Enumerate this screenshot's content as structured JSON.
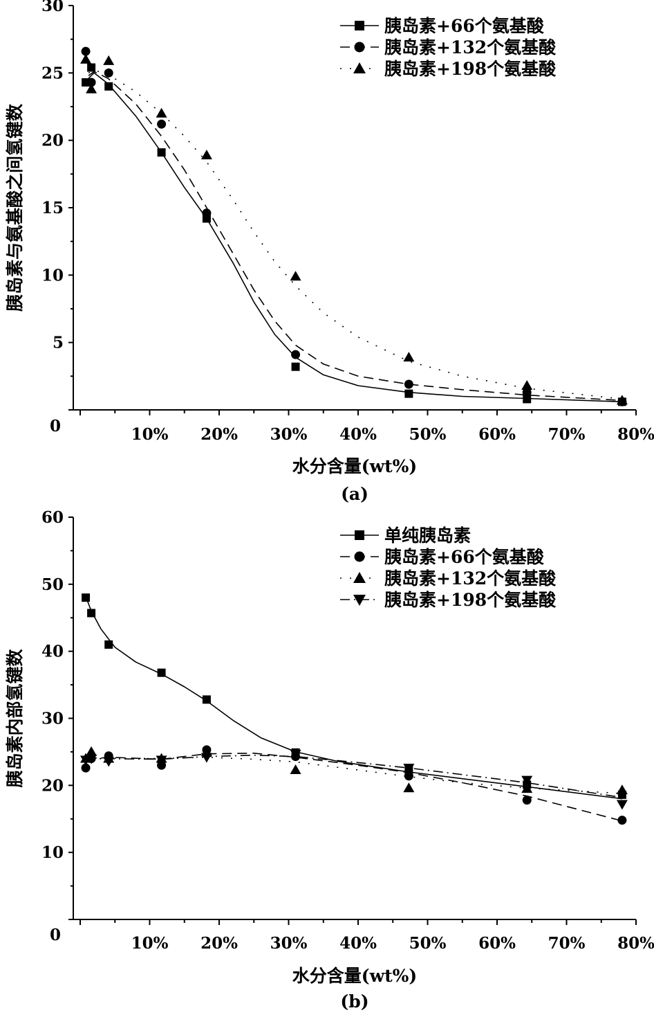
{
  "chart_data": [
    {
      "type": "scatter",
      "panel_label": "(a)",
      "xlabel": "水分含量(wt%)",
      "ylabel": "胰岛素与氨基酸之间氢键数",
      "x_ticks": [
        "0",
        "10%",
        "20%",
        "30%",
        "40%",
        "50%",
        "60%",
        "70%",
        "80%"
      ],
      "y_ticks": [
        "5",
        "10",
        "15",
        "20",
        "25",
        "30"
      ],
      "xlim": [
        0,
        80
      ],
      "ylim": [
        0,
        30
      ],
      "legend_position": "top-right",
      "series": [
        {
          "name": "胰岛素+66个氨基酸",
          "marker": "square",
          "line": "solid",
          "points": [
            [
              0.8,
              24.3
            ],
            [
              1.6,
              25.4
            ],
            [
              4.1,
              24.0
            ],
            [
              11.7,
              19.1
            ],
            [
              18.2,
              14.2
            ],
            [
              31.0,
              3.2
            ],
            [
              47.3,
              1.2
            ],
            [
              64.3,
              0.8
            ],
            [
              78.0,
              0.6
            ]
          ],
          "fit": [
            [
              1.2,
              24.6
            ],
            [
              2.0,
              25.0
            ],
            [
              4.0,
              24.2
            ],
            [
              8.0,
              21.8
            ],
            [
              11.7,
              19.1
            ],
            [
              15.0,
              16.5
            ],
            [
              18.2,
              14.2
            ],
            [
              22.0,
              10.9
            ],
            [
              25.0,
              8.0
            ],
            [
              28.0,
              5.6
            ],
            [
              31.0,
              3.9
            ],
            [
              35.0,
              2.6
            ],
            [
              40.0,
              1.8
            ],
            [
              47.3,
              1.3
            ],
            [
              55.0,
              1.0
            ],
            [
              64.3,
              0.85
            ],
            [
              78.0,
              0.6
            ]
          ]
        },
        {
          "name": "胰岛素+132个氨基酸",
          "marker": "circle",
          "line": "dashed",
          "points": [
            [
              0.8,
              26.6
            ],
            [
              1.6,
              24.3
            ],
            [
              4.1,
              25.0
            ],
            [
              11.7,
              21.2
            ],
            [
              18.2,
              14.6
            ],
            [
              31.0,
              4.1
            ],
            [
              47.3,
              1.9
            ],
            [
              64.3,
              1.3
            ],
            [
              78.0,
              0.6
            ]
          ],
          "fit": [
            [
              1.2,
              24.8
            ],
            [
              2.0,
              25.1
            ],
            [
              4.0,
              24.6
            ],
            [
              8.0,
              22.7
            ],
            [
              11.7,
              20.3
            ],
            [
              15.0,
              17.8
            ],
            [
              18.2,
              15.0
            ],
            [
              22.0,
              11.6
            ],
            [
              25.0,
              8.9
            ],
            [
              28.0,
              6.6
            ],
            [
              31.0,
              4.8
            ],
            [
              35.0,
              3.4
            ],
            [
              40.0,
              2.5
            ],
            [
              47.3,
              1.9
            ],
            [
              55.0,
              1.5
            ],
            [
              64.3,
              1.1
            ],
            [
              78.0,
              0.7
            ]
          ]
        },
        {
          "name": "胰岛素+198个氨基酸",
          "marker": "triangle",
          "line": "dotted",
          "points": [
            [
              0.8,
              26.0
            ],
            [
              1.6,
              23.8
            ],
            [
              4.1,
              25.9
            ],
            [
              11.7,
              22.0
            ],
            [
              18.2,
              18.9
            ],
            [
              31.0,
              9.9
            ],
            [
              47.3,
              3.9
            ],
            [
              64.3,
              1.8
            ],
            [
              78.0,
              0.7
            ]
          ],
          "fit": [
            [
              1.2,
              25.0
            ],
            [
              2.0,
              25.2
            ],
            [
              4.0,
              24.9
            ],
            [
              8.0,
              23.6
            ],
            [
              11.7,
              22.0
            ],
            [
              15.0,
              20.3
            ],
            [
              18.2,
              18.4
            ],
            [
              22.0,
              15.6
            ],
            [
              25.0,
              13.2
            ],
            [
              28.0,
              11.0
            ],
            [
              31.0,
              9.2
            ],
            [
              35.0,
              7.2
            ],
            [
              40.0,
              5.4
            ],
            [
              47.3,
              3.6
            ],
            [
              55.0,
              2.5
            ],
            [
              64.3,
              1.6
            ],
            [
              78.0,
              0.8
            ]
          ]
        }
      ]
    },
    {
      "type": "scatter",
      "panel_label": "(b)",
      "xlabel": "水分含量(wt%)",
      "ylabel": "胰岛素内部氢键数",
      "x_ticks": [
        "0",
        "10%",
        "20%",
        "30%",
        "40%",
        "50%",
        "60%",
        "70%",
        "80%"
      ],
      "y_ticks": [
        "10",
        "20",
        "30",
        "40",
        "50",
        "60"
      ],
      "xlim": [
        0,
        80
      ],
      "ylim": [
        0,
        60
      ],
      "legend_position": "top-right",
      "series": [
        {
          "name": "单纯胰岛素",
          "marker": "square",
          "line": "solid",
          "points": [
            [
              0.8,
              48.0
            ],
            [
              1.6,
              45.7
            ],
            [
              4.1,
              41.0
            ],
            [
              11.7,
              36.8
            ],
            [
              18.2,
              32.8
            ],
            [
              31.0,
              24.9
            ],
            [
              47.3,
              22.3
            ],
            [
              64.3,
              20.1
            ],
            [
              78.0,
              18.6
            ]
          ],
          "fit": [
            [
              0.8,
              48.2
            ],
            [
              1.6,
              46.0
            ],
            [
              3.0,
              43.3
            ],
            [
              5.0,
              40.6
            ],
            [
              8.0,
              38.4
            ],
            [
              11.7,
              36.6
            ],
            [
              15.0,
              34.7
            ],
            [
              18.2,
              32.6
            ],
            [
              22.0,
              29.7
            ],
            [
              26.0,
              27.1
            ],
            [
              31.0,
              25.0
            ],
            [
              37.0,
              23.6
            ],
            [
              47.3,
              22.0
            ],
            [
              55.0,
              21.0
            ],
            [
              64.3,
              19.8
            ],
            [
              78.0,
              18.0
            ]
          ]
        },
        {
          "name": "胰岛素+66个氨基酸",
          "marker": "circle",
          "line": "dashed",
          "points": [
            [
              0.8,
              22.6
            ],
            [
              1.6,
              24.0
            ],
            [
              4.1,
              24.4
            ],
            [
              11.7,
              23.0
            ],
            [
              18.2,
              25.3
            ],
            [
              31.0,
              24.3
            ],
            [
              47.3,
              21.4
            ],
            [
              64.3,
              17.8
            ],
            [
              78.0,
              14.8
            ]
          ],
          "fit": [
            [
              0.8,
              23.8
            ],
            [
              4.1,
              24.2
            ],
            [
              11.7,
              23.9
            ],
            [
              18.2,
              24.7
            ],
            [
              25.0,
              24.8
            ],
            [
              31.0,
              24.2
            ],
            [
              40.0,
              23.0
            ],
            [
              47.3,
              21.9
            ],
            [
              55.0,
              20.4
            ],
            [
              64.3,
              18.4
            ],
            [
              78.0,
              14.7
            ]
          ]
        },
        {
          "name": "胰岛素+132个氨基酸",
          "marker": "triangle",
          "line": "dotted",
          "points": [
            [
              0.8,
              24.0
            ],
            [
              1.6,
              25.0
            ],
            [
              4.1,
              24.0
            ],
            [
              11.7,
              24.0
            ],
            [
              18.2,
              25.0
            ],
            [
              31.0,
              22.3
            ],
            [
              47.3,
              19.6
            ],
            [
              64.3,
              19.5
            ],
            [
              78.0,
              19.3
            ]
          ],
          "fit": [
            [
              0.8,
              24.1
            ],
            [
              11.7,
              24.0
            ],
            [
              18.2,
              24.2
            ],
            [
              25.0,
              23.9
            ],
            [
              31.0,
              23.5
            ],
            [
              40.0,
              22.3
            ],
            [
              47.3,
              21.3
            ],
            [
              55.0,
              20.4
            ],
            [
              64.3,
              19.6
            ],
            [
              78.0,
              18.8
            ]
          ]
        },
        {
          "name": "胰岛素+198个氨基酸",
          "marker": "triangle-down",
          "line": "dash-dot",
          "points": [
            [
              0.8,
              23.8
            ],
            [
              1.6,
              24.0
            ],
            [
              4.1,
              23.6
            ],
            [
              11.7,
              23.8
            ],
            [
              18.2,
              24.2
            ],
            [
              31.0,
              24.7
            ],
            [
              47.3,
              22.6
            ],
            [
              64.3,
              20.8
            ],
            [
              78.0,
              17.2
            ]
          ],
          "fit": [
            [
              0.8,
              24.0
            ],
            [
              11.7,
              23.9
            ],
            [
              18.2,
              24.3
            ],
            [
              25.0,
              24.5
            ],
            [
              31.0,
              24.3
            ],
            [
              40.0,
              23.4
            ],
            [
              47.3,
              22.6
            ],
            [
              55.0,
              21.6
            ],
            [
              64.3,
              20.4
            ],
            [
              78.0,
              18.2
            ]
          ]
        }
      ]
    }
  ]
}
